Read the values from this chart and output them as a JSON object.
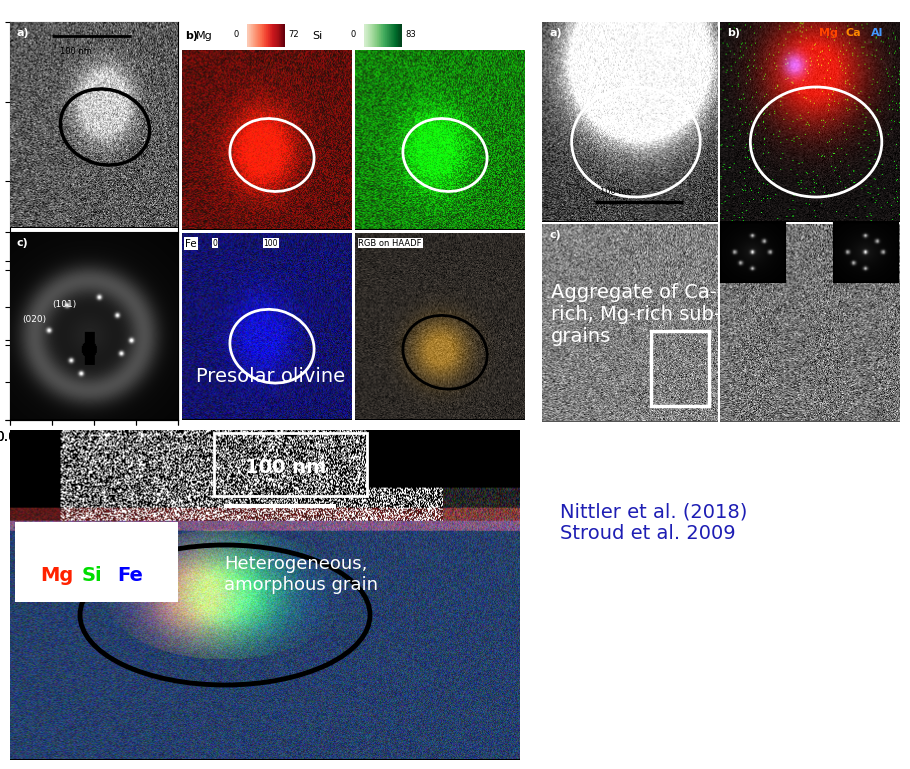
{
  "background_color": "#ffffff",
  "fig_width": 9.1,
  "fig_height": 7.69,
  "dpi": 100,
  "references_text": "Nittler et al. (2018)\nStroud et al. 2009",
  "references_color": "#1e1eb4",
  "references_fontsize": 14,
  "presolar_olivine_label": "Presolar olivine",
  "presolar_olivine_color": "#ffffff",
  "presolar_olivine_fontsize": 14,
  "aggregate_label": "Aggregate of Ca-\nrich, Mg-rich sub-\ngrains",
  "aggregate_color": "#ffffff",
  "aggregate_fontsize": 14,
  "heterogeneous_label": "Heterogeneous,\namorphous grain",
  "heterogeneous_color": "#ffffff",
  "heterogeneous_fontsize": 13,
  "mg_color": "#ff2200",
  "si_color": "#00dd00",
  "fe_color": "#0000ff",
  "mg_tr_color": "#ff4400",
  "ca_tr_color": "#ff8800",
  "al_tr_color": "#4499ff"
}
